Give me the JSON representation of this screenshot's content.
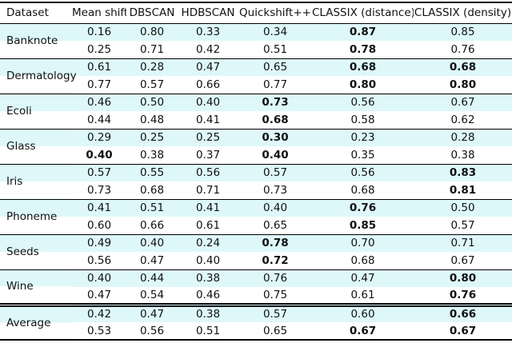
{
  "table": {
    "columns": [
      {
        "label": "Dataset"
      },
      {
        "label": "Mean shift"
      },
      {
        "label": "DBSCAN"
      },
      {
        "label": "HDBSCAN"
      },
      {
        "label": "Quickshift++"
      },
      {
        "label": "CLASSIX (distance)"
      },
      {
        "label": "CLASSIX (density)"
      }
    ],
    "groups": [
      {
        "dataset": "Banknote",
        "rows": [
          {
            "values": [
              "0.16",
              "0.80",
              "0.33",
              "0.34",
              "0.87",
              "0.85"
            ],
            "bold": [
              4
            ]
          },
          {
            "values": [
              "0.25",
              "0.71",
              "0.42",
              "0.51",
              "0.78",
              "0.76"
            ],
            "bold": [
              4
            ]
          }
        ]
      },
      {
        "dataset": "Dermatology",
        "rows": [
          {
            "values": [
              "0.61",
              "0.28",
              "0.47",
              "0.65",
              "0.68",
              "0.68"
            ],
            "bold": [
              4,
              5
            ]
          },
          {
            "values": [
              "0.77",
              "0.57",
              "0.66",
              "0.77",
              "0.80",
              "0.80"
            ],
            "bold": [
              4,
              5
            ]
          }
        ]
      },
      {
        "dataset": "Ecoli",
        "rows": [
          {
            "values": [
              "0.46",
              "0.50",
              "0.40",
              "0.73",
              "0.56",
              "0.67"
            ],
            "bold": [
              3
            ]
          },
          {
            "values": [
              "0.44",
              "0.48",
              "0.41",
              "0.68",
              "0.58",
              "0.62"
            ],
            "bold": [
              3
            ]
          }
        ]
      },
      {
        "dataset": "Glass",
        "rows": [
          {
            "values": [
              "0.29",
              "0.25",
              "0.25",
              "0.30",
              "0.23",
              "0.28"
            ],
            "bold": [
              3
            ]
          },
          {
            "values": [
              "0.40",
              "0.38",
              "0.37",
              "0.40",
              "0.35",
              "0.38"
            ],
            "bold": [
              0,
              3
            ]
          }
        ]
      },
      {
        "dataset": "Iris",
        "rows": [
          {
            "values": [
              "0.57",
              "0.55",
              "0.56",
              "0.57",
              "0.56",
              "0.83"
            ],
            "bold": [
              5
            ]
          },
          {
            "values": [
              "0.73",
              "0.68",
              "0.71",
              "0.73",
              "0.68",
              "0.81"
            ],
            "bold": [
              5
            ]
          }
        ]
      },
      {
        "dataset": "Phoneme",
        "rows": [
          {
            "values": [
              "0.41",
              "0.51",
              "0.41",
              "0.40",
              "0.76",
              "0.50"
            ],
            "bold": [
              4
            ]
          },
          {
            "values": [
              "0.60",
              "0.66",
              "0.61",
              "0.65",
              "0.85",
              "0.57"
            ],
            "bold": [
              4
            ]
          }
        ]
      },
      {
        "dataset": "Seeds",
        "rows": [
          {
            "values": [
              "0.49",
              "0.40",
              "0.24",
              "0.78",
              "0.70",
              "0.71"
            ],
            "bold": [
              3
            ]
          },
          {
            "values": [
              "0.56",
              "0.47",
              "0.40",
              "0.72",
              "0.68",
              "0.67"
            ],
            "bold": [
              3
            ]
          }
        ]
      },
      {
        "dataset": "Wine",
        "rows": [
          {
            "values": [
              "0.40",
              "0.44",
              "0.38",
              "0.76",
              "0.47",
              "0.80"
            ],
            "bold": [
              5
            ]
          },
          {
            "values": [
              "0.47",
              "0.54",
              "0.46",
              "0.75",
              "0.61",
              "0.76"
            ],
            "bold": [
              5
            ]
          }
        ]
      },
      {
        "dataset": "Average",
        "double_rule_above": true,
        "rows": [
          {
            "values": [
              "0.42",
              "0.47",
              "0.38",
              "0.57",
              "0.60",
              "0.66"
            ],
            "bold": [
              5
            ]
          },
          {
            "values": [
              "0.53",
              "0.56",
              "0.51",
              "0.65",
              "0.67",
              "0.67"
            ],
            "bold": [
              4,
              5
            ]
          }
        ]
      }
    ],
    "colors": {
      "row_highlight": "#def8fa",
      "rule": "#000000"
    }
  }
}
